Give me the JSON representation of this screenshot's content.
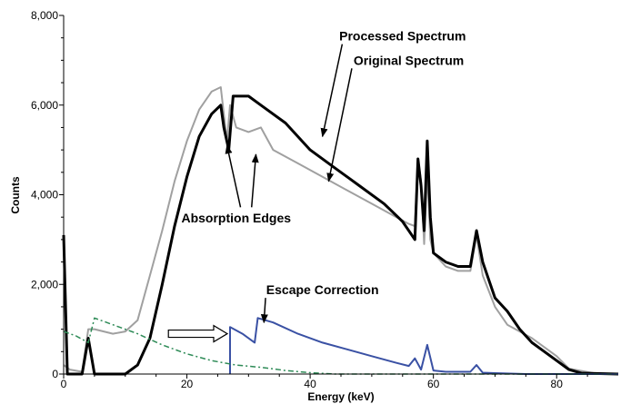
{
  "chart_data": {
    "type": "line",
    "title": "",
    "xlabel": "Energy (keV)",
    "ylabel": "Counts",
    "xlim": [
      0,
      90
    ],
    "ylim": [
      0,
      8000
    ],
    "x_ticks": [
      0,
      20,
      40,
      60,
      80
    ],
    "x_tick_labels": [
      "0",
      "20",
      "40",
      "60",
      "80"
    ],
    "y_ticks": [
      0,
      2000,
      4000,
      6000,
      8000
    ],
    "y_tick_labels": [
      "0",
      "2,000",
      "4,000",
      "6,000",
      "8,000"
    ],
    "grid": false,
    "series": [
      {
        "color": "#a0a0a0",
        "points": [
          [
            0,
            200
          ],
          [
            1,
            100
          ],
          [
            3,
            50
          ],
          [
            4,
            1000
          ],
          [
            5,
            1000
          ],
          [
            8,
            900
          ],
          [
            10,
            950
          ],
          [
            12,
            1200
          ],
          [
            14,
            2200
          ],
          [
            16,
            3200
          ],
          [
            18,
            4300
          ],
          [
            20,
            5200
          ],
          [
            22,
            5900
          ],
          [
            24,
            6300
          ],
          [
            25.5,
            6400
          ],
          [
            26.5,
            5200
          ],
          [
            27,
            6000
          ],
          [
            28,
            5500
          ],
          [
            30,
            5400
          ],
          [
            32,
            5500
          ],
          [
            34,
            5000
          ],
          [
            38,
            4700
          ],
          [
            42,
            4400
          ],
          [
            46,
            4100
          ],
          [
            50,
            3800
          ],
          [
            54,
            3500
          ],
          [
            56,
            3350
          ],
          [
            57,
            3300
          ],
          [
            57.5,
            4800
          ],
          [
            58,
            4300
          ],
          [
            58.5,
            2900
          ],
          [
            59,
            4500
          ],
          [
            59.5,
            3000
          ],
          [
            60,
            2700
          ],
          [
            62,
            2400
          ],
          [
            64,
            2300
          ],
          [
            66,
            2300
          ],
          [
            67,
            3100
          ],
          [
            68,
            2200
          ],
          [
            70,
            1500
          ],
          [
            72,
            1100
          ],
          [
            76,
            800
          ],
          [
            80,
            400
          ],
          [
            82,
            120
          ],
          [
            86,
            20
          ],
          [
            90,
            0
          ]
        ]
      },
      {
        "color": "#000000",
        "points": [
          [
            0,
            3100
          ],
          [
            0.6,
            0
          ],
          [
            3,
            0
          ],
          [
            4,
            800
          ],
          [
            5,
            0
          ],
          [
            8,
            0
          ],
          [
            10,
            0
          ],
          [
            12,
            200
          ],
          [
            14,
            800
          ],
          [
            16,
            2000
          ],
          [
            18,
            3300
          ],
          [
            20,
            4400
          ],
          [
            22,
            5300
          ],
          [
            24,
            5800
          ],
          [
            25.5,
            6000
          ],
          [
            26,
            5500
          ],
          [
            26.8,
            5000
          ],
          [
            27.5,
            6200
          ],
          [
            30,
            6200
          ],
          [
            32,
            6000
          ],
          [
            36,
            5600
          ],
          [
            40,
            5000
          ],
          [
            44,
            4600
          ],
          [
            48,
            4200
          ],
          [
            52,
            3800
          ],
          [
            55,
            3400
          ],
          [
            57,
            3000
          ],
          [
            57.5,
            4800
          ],
          [
            58,
            4200
          ],
          [
            58.5,
            3200
          ],
          [
            59,
            5200
          ],
          [
            59.5,
            3500
          ],
          [
            60,
            2700
          ],
          [
            62,
            2500
          ],
          [
            64,
            2400
          ],
          [
            66,
            2400
          ],
          [
            67,
            3200
          ],
          [
            68,
            2500
          ],
          [
            70,
            1700
          ],
          [
            72,
            1400
          ],
          [
            74,
            1000
          ],
          [
            76,
            700
          ],
          [
            78,
            500
          ],
          [
            80,
            300
          ],
          [
            82,
            100
          ],
          [
            84,
            20
          ],
          [
            90,
            0
          ]
        ]
      },
      {
        "color": "#3a51a4",
        "points": [
          [
            27,
            0
          ],
          [
            27,
            1050
          ],
          [
            29,
            900
          ],
          [
            31,
            700
          ],
          [
            31.5,
            1250
          ],
          [
            34,
            1150
          ],
          [
            38,
            900
          ],
          [
            42,
            700
          ],
          [
            46,
            550
          ],
          [
            50,
            400
          ],
          [
            54,
            250
          ],
          [
            56,
            180
          ],
          [
            57,
            350
          ],
          [
            58,
            100
          ],
          [
            59,
            650
          ],
          [
            60,
            80
          ],
          [
            62,
            50
          ],
          [
            66,
            50
          ],
          [
            67,
            200
          ],
          [
            68,
            30
          ],
          [
            70,
            20
          ],
          [
            75,
            0
          ],
          [
            90,
            0
          ]
        ]
      },
      {
        "color": "#2e8b57",
        "style": "dashed",
        "points": [
          [
            0,
            950
          ],
          [
            2,
            850
          ],
          [
            4,
            700
          ],
          [
            5,
            1250
          ],
          [
            8,
            1100
          ],
          [
            12,
            900
          ],
          [
            16,
            650
          ],
          [
            20,
            450
          ],
          [
            24,
            300
          ],
          [
            28,
            200
          ],
          [
            32,
            150
          ],
          [
            36,
            80
          ],
          [
            40,
            30
          ],
          [
            44,
            0
          ],
          [
            90,
            0
          ]
        ]
      }
    ],
    "annotations": [
      {
        "text": "Processed Spectrum",
        "x": 55,
        "y": 7440,
        "anchor": "middle",
        "arrow_to": [
          42,
          5300
        ]
      },
      {
        "text": "Original Spectrum",
        "x": 56,
        "y": 6900,
        "anchor": "middle",
        "arrow_to": [
          43,
          4300
        ]
      },
      {
        "text": "Absorption Edges",
        "x": 28,
        "y": 3380,
        "anchor": "middle",
        "arrows_to": [
          [
            26.5,
            5100
          ],
          [
            31.2,
            4900
          ]
        ],
        "arrows_from": [
          [
            28.7,
            3720
          ],
          [
            30.5,
            3720
          ]
        ]
      },
      {
        "text": "Escape Correction",
        "x": 42,
        "y": 1780,
        "anchor": "middle",
        "arrow_to": [
          32.5,
          1150
        ]
      }
    ],
    "hollow_arrow": {
      "from": [
        17,
        900
      ],
      "to": [
        27,
        900
      ]
    }
  }
}
